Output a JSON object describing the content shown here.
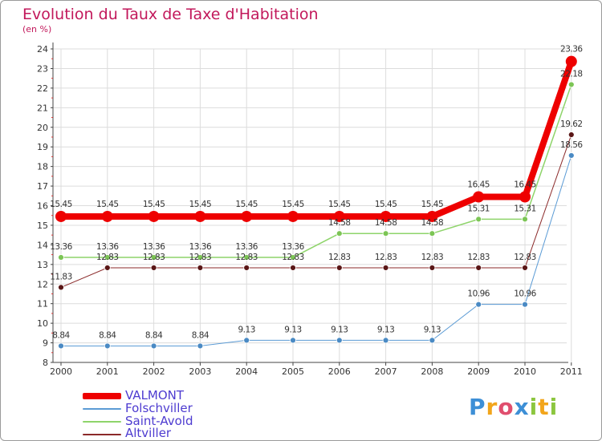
{
  "header": {
    "title": "Evolution du Taux de Taxe d'Habitation",
    "unit": "(en %)"
  },
  "colors": {
    "accent": "#c2185b",
    "grid": "#dcdcdc",
    "axis": "#444444"
  },
  "chart_data": {
    "type": "line",
    "title": "Evolution du Taux de Taxe d'Habitation",
    "ylabel": "(en %)",
    "xlabel": "",
    "x": [
      "2000",
      "2001",
      "2002",
      "2003",
      "2004",
      "2005",
      "2006",
      "2007",
      "2008",
      "2009",
      "2010",
      "2011"
    ],
    "ylim": [
      8,
      24
    ],
    "yticks": [
      8,
      9,
      10,
      11,
      12,
      13,
      14,
      15,
      16,
      17,
      18,
      19,
      20,
      21,
      22,
      23,
      24
    ],
    "grid": true,
    "legend_position": "bottom-left",
    "series": [
      {
        "name": "Altviller",
        "color": "#8b2a2a",
        "marker_color": "#5a1616",
        "width": 1,
        "marker_r": 3.5,
        "values": [
          11.83,
          12.83,
          12.83,
          12.83,
          12.83,
          12.83,
          12.83,
          12.83,
          12.83,
          12.83,
          12.83,
          19.62
        ],
        "labels": [
          "11.83",
          "12.83",
          "12.83",
          "12.83",
          "12.83",
          "12.83",
          "12.83",
          "12.83",
          "12.83",
          "12.83",
          "12.83",
          "19.62"
        ]
      },
      {
        "name": "Folschviller",
        "color": "#5b9bd5",
        "marker_color": "#4a8ac4",
        "width": 1,
        "marker_r": 3.5,
        "values": [
          8.84,
          8.84,
          8.84,
          8.84,
          9.13,
          9.13,
          9.13,
          9.13,
          9.13,
          10.96,
          10.96,
          18.56
        ],
        "labels": [
          "8.84",
          "8.84",
          "8.84",
          "8.84",
          "9.13",
          "9.13",
          "9.13",
          "9.13",
          "9.13",
          "10.96",
          "10.96",
          "18.56"
        ]
      },
      {
        "name": "Saint-Avold",
        "color": "#8ed46a",
        "marker_color": "#7cc555",
        "width": 1.5,
        "marker_r": 3.5,
        "values": [
          13.36,
          13.36,
          13.36,
          13.36,
          13.36,
          13.36,
          14.58,
          14.58,
          14.58,
          15.31,
          15.31,
          22.18
        ],
        "labels": [
          "13.36",
          "13.36",
          "13.36",
          "13.36",
          "13.36",
          "13.36",
          "14.58",
          "14.58",
          "14.58",
          "15.31",
          "15.31",
          "22.18"
        ]
      },
      {
        "name": "VALMONT",
        "color": "#ee0000",
        "marker_color": "#ee0000",
        "width": 8,
        "marker_r": 7,
        "values": [
          15.45,
          15.45,
          15.45,
          15.45,
          15.45,
          15.45,
          15.45,
          15.45,
          15.45,
          16.45,
          16.45,
          23.36
        ],
        "labels": [
          "15.45",
          "15.45",
          "15.45",
          "15.45",
          "15.45",
          "15.45",
          "15.45",
          "15.45",
          "15.45",
          "16.45",
          "16.45",
          "23.36"
        ]
      }
    ]
  },
  "legend": {
    "items": [
      {
        "label": "VALMONT",
        "color": "#ee0000",
        "text_color": "#4d3bd0"
      },
      {
        "label": "Folschviller",
        "color": "#5b9bd5",
        "text_color": "#4d3bd0"
      },
      {
        "label": "Saint-Avold",
        "color": "#8ed46a",
        "text_color": "#4d3bd0"
      },
      {
        "label": "Altviller",
        "color": "#8b2a2a",
        "text_color": "#4d3bd0"
      }
    ]
  },
  "logo": {
    "letters": [
      {
        "char": "P",
        "color": "#3d8fd6"
      },
      {
        "char": "r",
        "color": "#f2a51b"
      },
      {
        "char": "o",
        "color": "#e04e6e"
      },
      {
        "char": "x",
        "color": "#3d8fd6"
      },
      {
        "char": "i",
        "color": "#8cc63f"
      },
      {
        "char": "t",
        "color": "#f2a51b"
      },
      {
        "char": "i",
        "color": "#8cc63f"
      }
    ]
  }
}
